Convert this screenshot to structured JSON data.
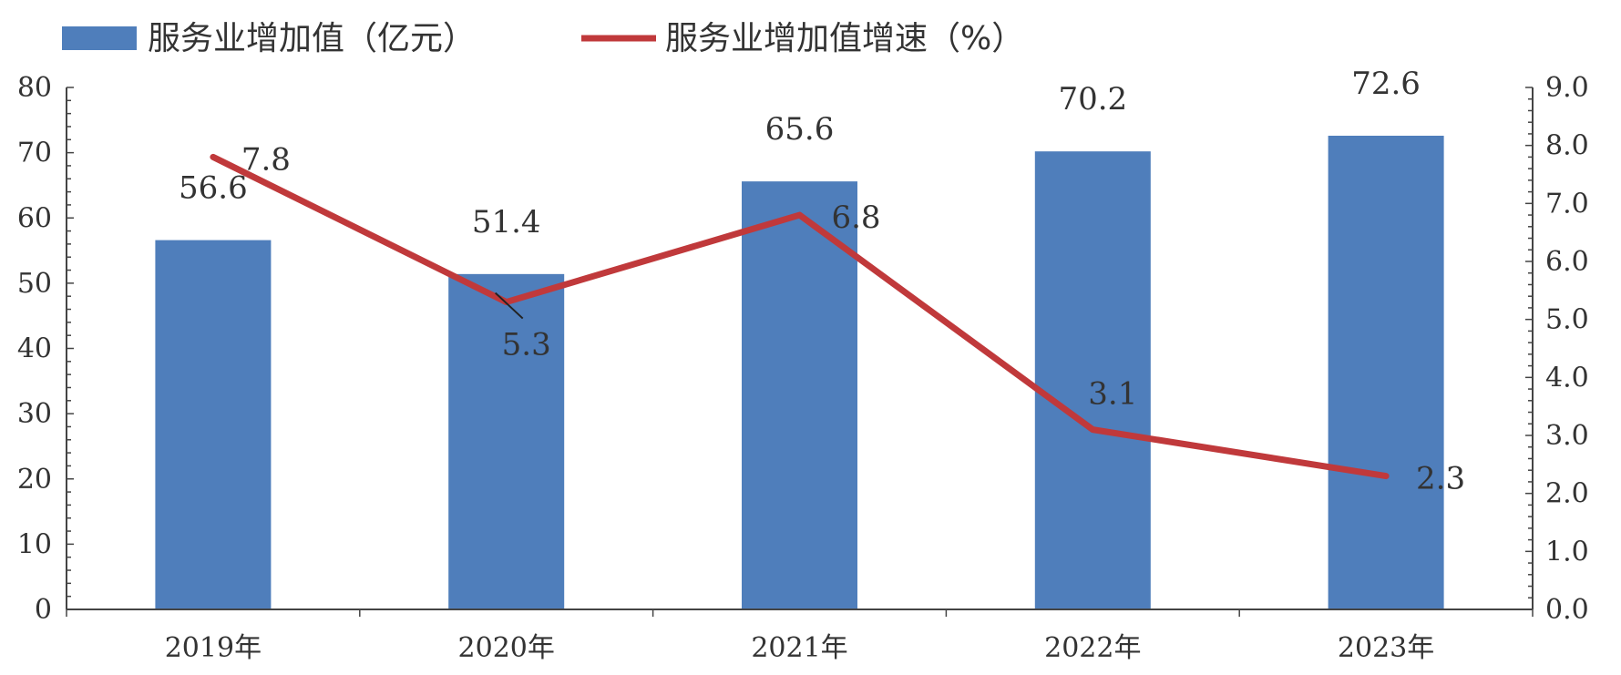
{
  "chart_data": {
    "type": "bar",
    "categories": [
      "2019年",
      "2020年",
      "2021年",
      "2022年",
      "2023年"
    ],
    "series": [
      {
        "name": "服务业增加值（亿元）",
        "type": "bar",
        "axis": "left",
        "color": "#4F7EBB",
        "values": [
          56.6,
          51.4,
          65.6,
          70.2,
          72.6
        ]
      },
      {
        "name": "服务业增加值增速（%）",
        "type": "line",
        "axis": "right",
        "color": "#C0393B",
        "values": [
          7.8,
          5.3,
          6.8,
          3.1,
          2.3
        ]
      }
    ],
    "y_left": {
      "range": [
        0,
        80
      ],
      "ticks": [
        "0",
        "10",
        "20",
        "30",
        "40",
        "50",
        "60",
        "70",
        "80"
      ]
    },
    "y_right": {
      "range": [
        0,
        9
      ],
      "ticks": [
        "0.0",
        "1.0",
        "2.0",
        "3.0",
        "4.0",
        "5.0",
        "6.0",
        "7.0",
        "8.0",
        "9.0"
      ]
    },
    "legend_position": "top-left",
    "grid": false
  }
}
